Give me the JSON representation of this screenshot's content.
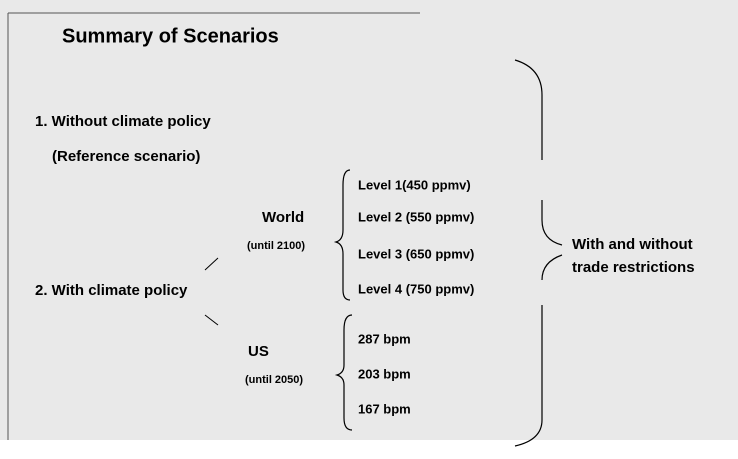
{
  "header": {
    "title": "Summary of Scenarios"
  },
  "scenarios": [
    {
      "label": "1. Without climate policy",
      "sublabel": "(Reference scenario)"
    },
    {
      "label": "2.  With climate policy"
    }
  ],
  "regions": [
    {
      "name": "World",
      "period": "(until 2100)",
      "options": [
        "Level 1(450 ppmv)",
        "Level 2 (550 ppmv)",
        "Level 3 (650 ppmv)",
        "Level 4 (750 ppmv)"
      ]
    },
    {
      "name": "US",
      "period": "(until 2050)",
      "options": [
        "287 bpm",
        "203 bpm",
        "167 bpm"
      ]
    }
  ],
  "outcome": [
    "With and without",
    "trade restrictions"
  ]
}
